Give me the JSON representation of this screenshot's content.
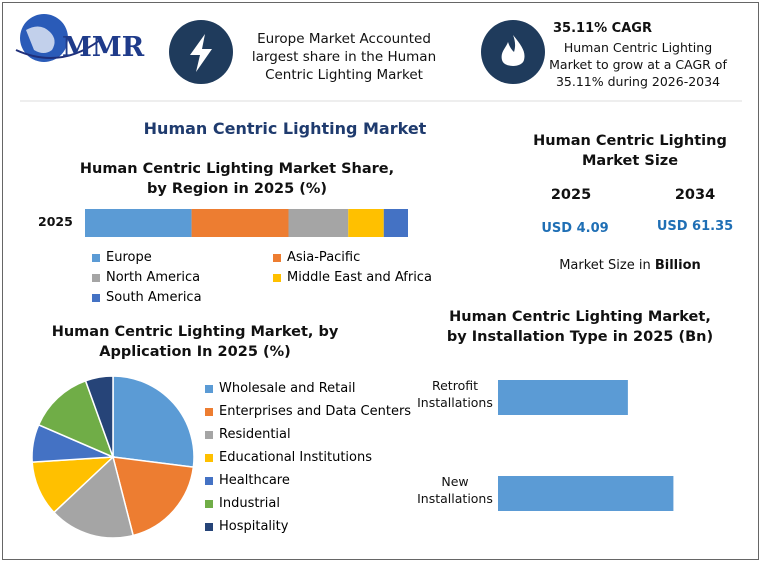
{
  "header": {
    "logo": "MMR",
    "highlight_1": "Europe Market Accounted largest share in the Human Centric Lighting Market",
    "highlight_2_title": "35.11% CAGR",
    "highlight_2": "Human Centric Lighting Market to grow at a CAGR of 35.11% during 2026-2034"
  },
  "title": "Human Centric Lighting Market",
  "market_size": {
    "title": "Human Centric Lighting Market Size",
    "years": [
      "2025",
      "2034"
    ],
    "values": [
      "USD 4.09",
      "USD 61.35"
    ],
    "note": "Market Size in",
    "unit": "Billion"
  },
  "chart_data": [
    {
      "type": "stacked_bar",
      "title": "Human Centric Lighting Market Share, by Region in 2025 (%)",
      "categories": [
        "2025"
      ],
      "xlim": [
        0,
        100
      ],
      "series": [
        {
          "name": "Europe",
          "color": "#5b9bd5",
          "values": [
            33
          ]
        },
        {
          "name": "Asia-Pacific",
          "color": "#ed7d31",
          "values": [
            30
          ]
        },
        {
          "name": "North America",
          "color": "#a5a5a5",
          "values": [
            18.5
          ]
        },
        {
          "name": "Middle East and Africa",
          "color": "#ffc000",
          "values": [
            11
          ]
        },
        {
          "name": "South America",
          "color": "#4472c4",
          "values": [
            7.5
          ]
        }
      ]
    },
    {
      "type": "pie",
      "title": "Human Centric Lighting Market, by Application In 2025 (%)",
      "categories": [
        "Wholesale and Retail",
        "Enterprises and Data Centers",
        "Residential",
        "Educational Institutions",
        "Healthcare",
        "Industrial",
        "Hospitality"
      ],
      "values": [
        27,
        19,
        17,
        11,
        7.5,
        13,
        5.5
      ],
      "colors": [
        "#5b9bd5",
        "#ed7d31",
        "#a5a5a5",
        "#ffc000",
        "#4472c4",
        "#70ad47",
        "#264478"
      ]
    },
    {
      "type": "bar",
      "orientation": "horizontal",
      "title": "Human Centric Lighting Market, by Installation Type in 2025 (Bn)",
      "categories": [
        "Retrofit Installations",
        "New Installations"
      ],
      "values": [
        1.74,
        2.35
      ],
      "xlim": [
        0,
        2.8
      ],
      "color": "#5b9bd5"
    }
  ]
}
